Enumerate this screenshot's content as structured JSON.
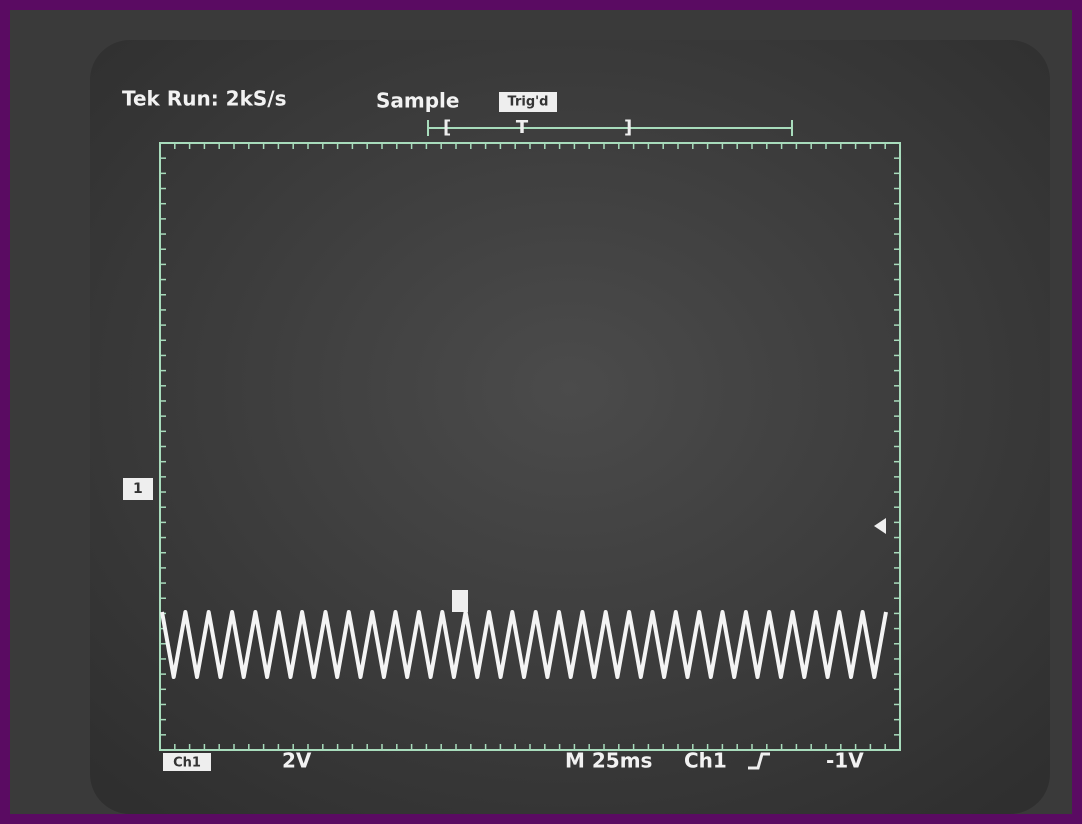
{
  "header": {
    "status": "Tek Run: 2kS/s",
    "mode": "Sample",
    "trigger_state": "Trig'd",
    "trigger_marker": "T"
  },
  "channel_marker": "1",
  "footer": {
    "channel_box": "Ch1",
    "volts_per_div": "2V",
    "timebase": "M 25ms",
    "trigger_source": "Ch1",
    "trigger_level": "-1V"
  }
}
